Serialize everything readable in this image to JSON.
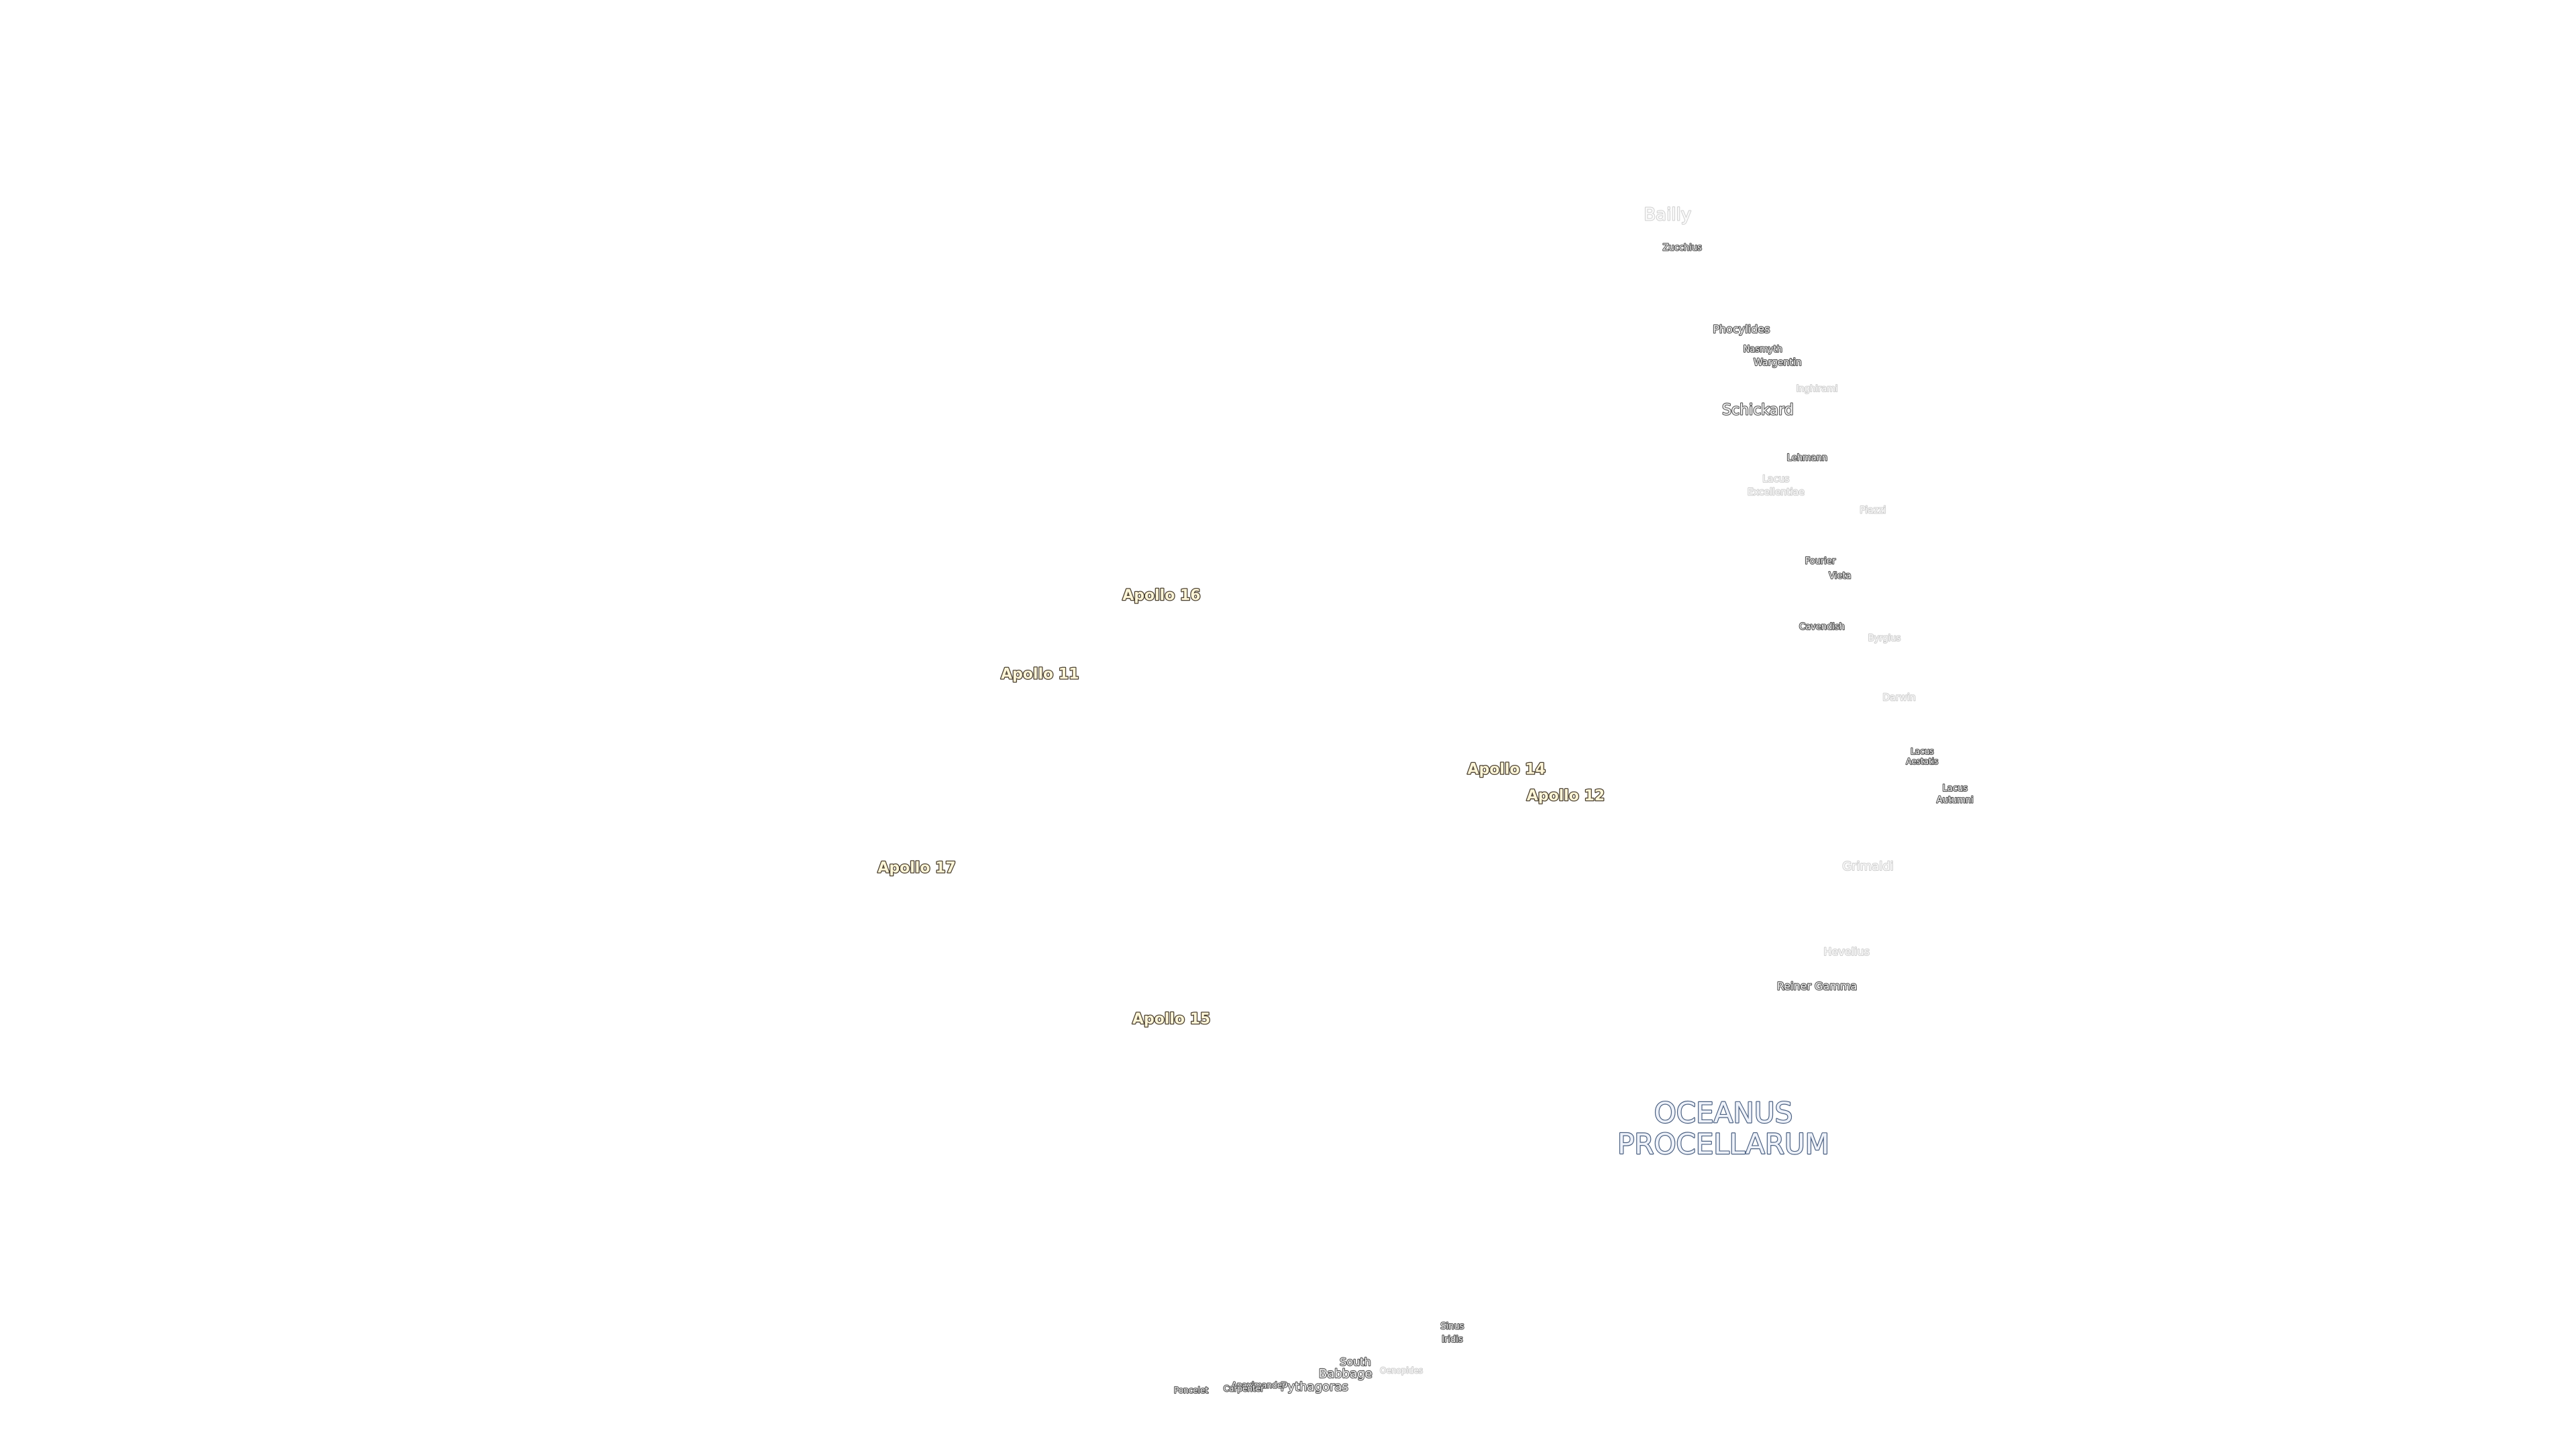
{
  "landing_sites": [
    "Apollo 16",
    "Apollo 11",
    "Apollo 14",
    "Apollo 12",
    "Apollo 17",
    "Apollo 15"
  ],
  "features": [
    [
      "Bailly"
    ],
    [
      "Zucchius"
    ],
    [
      "Phocylides"
    ],
    [
      "Nasmyth"
    ],
    [
      "Wargentin"
    ],
    [
      "Inghirami"
    ],
    [
      "Schickard"
    ],
    [
      "Lehmann"
    ],
    [
      "Lacus",
      "Excellentiae"
    ],
    [
      "Piazzi"
    ],
    [
      "Fourier"
    ],
    [
      "Vieta"
    ],
    [
      "Cavendish"
    ],
    [
      "Byrgius"
    ],
    [
      "Darwin"
    ],
    [
      "Lacus",
      "Aestatis"
    ],
    [
      "Lacus",
      "Autumni"
    ],
    [
      "Grimaldi"
    ],
    [
      "Hevelius"
    ],
    [
      "Reiner Gamma"
    ],
    [
      "Sinus",
      "Iridis"
    ],
    [
      "South"
    ],
    [
      "Babbage"
    ],
    [
      "Pythagoras"
    ],
    [
      "Oenopides"
    ],
    [
      "Anaximander"
    ],
    [
      "Carpenter"
    ],
    [
      "Poncelet"
    ]
  ],
  "region": [
    "OCEANUS",
    "PROCELLARUM"
  ]
}
